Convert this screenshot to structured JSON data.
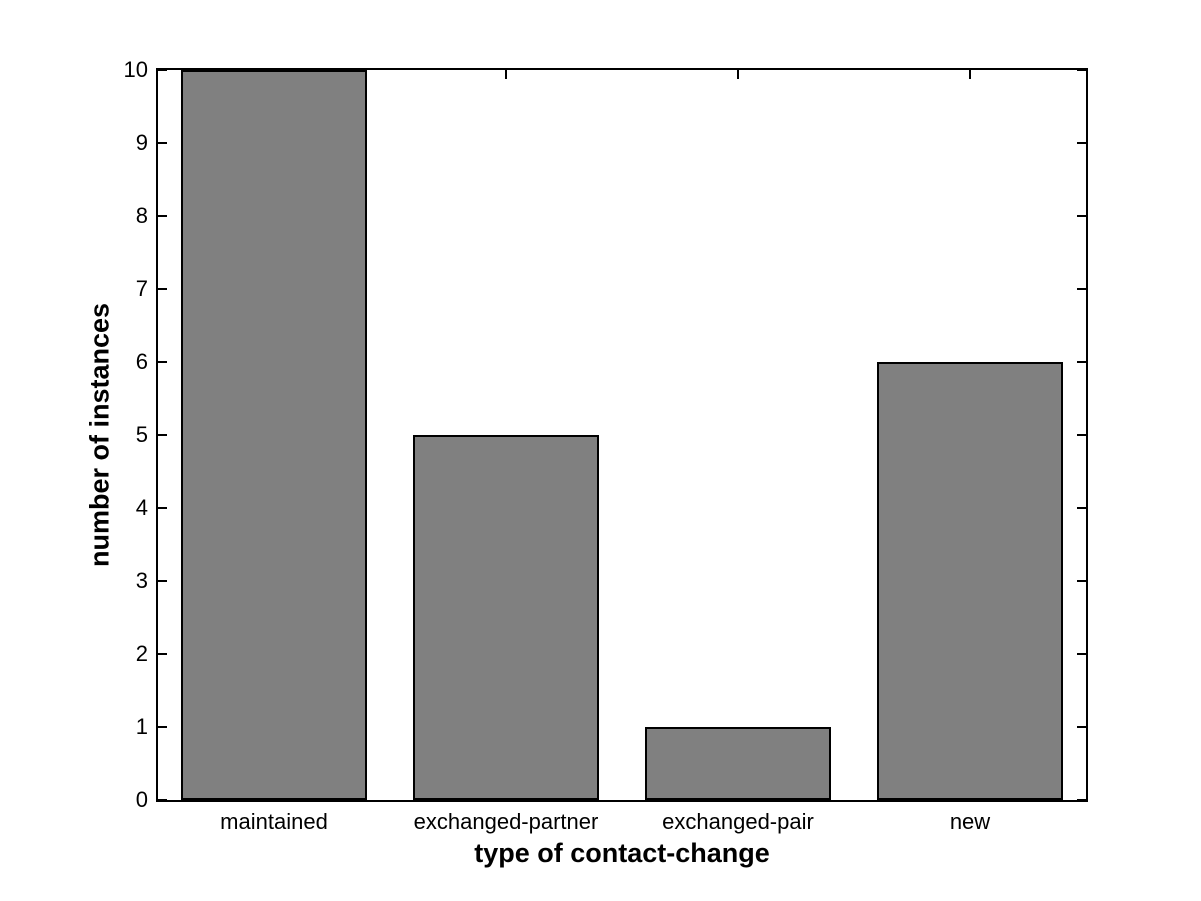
{
  "chart_data": {
    "type": "bar",
    "title": "",
    "categories": [
      "maintained",
      "exchanged-partner",
      "exchanged-pair",
      "new"
    ],
    "values": [
      10,
      5,
      1,
      6
    ],
    "xlabel": "type of contact-change",
    "ylabel": "number of instances",
    "ylim": [
      0,
      10
    ],
    "ytick_labels": [
      "0",
      "1",
      "2",
      "3",
      "4",
      "5",
      "6",
      "7",
      "8",
      "9",
      "10"
    ],
    "bar_color": "#808080",
    "bar_edge_color": "#000000",
    "bar_width_fraction": 0.8,
    "grid": false,
    "legend": null,
    "axes_box": true,
    "tick_direction": "in"
  }
}
